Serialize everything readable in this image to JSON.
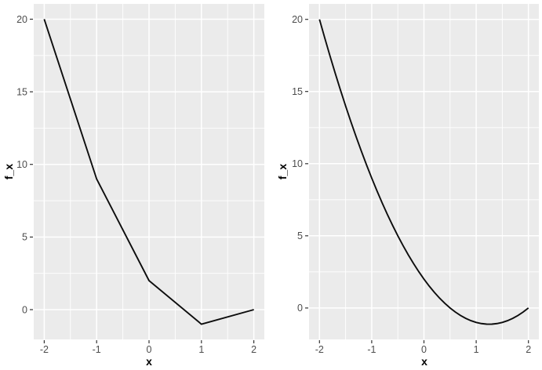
{
  "theme": {
    "page_bg": "#FFFFFF",
    "panel_bg": "#EBEBEB",
    "grid_major_color": "#FFFFFF",
    "grid_minor_color": "#FFFFFF",
    "line_color": "#0D0D0D",
    "tick_label_color": "#4D4D4D",
    "tick_mark_color": "#333333",
    "axis_title_color": "#000000"
  },
  "chart_data": [
    {
      "type": "line",
      "title": "",
      "xlabel": "x",
      "ylabel": "f_x",
      "grid": true,
      "legend": "none",
      "x": [
        -2,
        -1,
        0,
        1,
        2
      ],
      "y": [
        20,
        9,
        2,
        -1,
        0
      ],
      "xlim": [
        -2.2,
        2.2
      ],
      "ylim": [
        -2.05,
        21.05
      ],
      "x_tick_values": [
        -2,
        -1,
        0,
        1,
        2
      ],
      "x_tick_labels": [
        "-2",
        "-1",
        "0",
        "1",
        "2"
      ],
      "y_tick_values": [
        0,
        5,
        10,
        15,
        20
      ],
      "y_tick_labels": [
        "0",
        "5",
        "10",
        "15",
        "20"
      ],
      "x_minor_values": [
        -1.5,
        -0.5,
        0.5,
        1.5
      ],
      "y_minor_values": [
        2.5,
        7.5,
        12.5,
        17.5
      ]
    },
    {
      "type": "line",
      "title": "",
      "xlabel": "x",
      "ylabel": "f_x",
      "grid": true,
      "legend": "none",
      "x": [
        -2,
        -1.9,
        -1.8,
        -1.7,
        -1.6,
        -1.5,
        -1.4,
        -1.3,
        -1.2,
        -1.1,
        -1,
        -0.9,
        -0.8,
        -0.7,
        -0.6,
        -0.5,
        -0.4,
        -0.3,
        -0.2,
        -0.1,
        0,
        0.1,
        0.2,
        0.3,
        0.4,
        0.5,
        0.6,
        0.7,
        0.8,
        0.9,
        1,
        1.1,
        1.2,
        1.25,
        1.3,
        1.4,
        1.5,
        1.6,
        1.7,
        1.8,
        1.9,
        2
      ],
      "y": [
        20,
        18.72,
        17.48,
        16.28,
        15.12,
        14,
        12.92,
        11.88,
        10.88,
        9.92,
        9,
        8.12,
        7.28,
        6.48,
        5.72,
        5,
        4.32,
        3.68,
        3.08,
        2.52,
        2,
        1.52,
        1.08,
        0.68,
        0.32,
        0,
        -0.28,
        -0.52,
        -0.72,
        -0.88,
        -1,
        -1.08,
        -1.12,
        -1.125,
        -1.12,
        -1.08,
        -1,
        -0.88,
        -0.72,
        -0.52,
        -0.28,
        0
      ],
      "xlim": [
        -2.2,
        2.2
      ],
      "ylim": [
        -2.18,
        21.07
      ],
      "x_tick_values": [
        -2,
        -1,
        0,
        1,
        2
      ],
      "x_tick_labels": [
        "-2",
        "-1",
        "0",
        "1",
        "2"
      ],
      "y_tick_values": [
        0,
        5,
        10,
        15,
        20
      ],
      "y_tick_labels": [
        "0",
        "5",
        "10",
        "15",
        "20"
      ],
      "x_minor_values": [
        -1.5,
        -0.5,
        0.5,
        1.5
      ],
      "y_minor_values": [
        2.5,
        7.5,
        12.5,
        17.5
      ]
    }
  ]
}
